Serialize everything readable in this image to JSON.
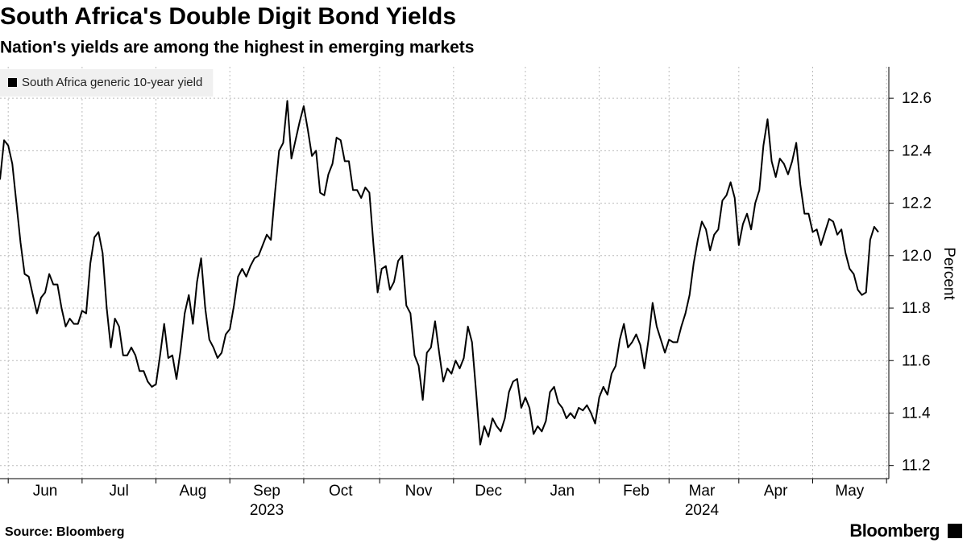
{
  "chart_data": {
    "type": "line",
    "title": "South Africa's Double Digit Bond Yields",
    "subtitle": "Nation's yields are among the highest in emerging markets",
    "y_axis_label": "Percent",
    "source": "Source: Bloomberg",
    "logo": "Bloomberg",
    "legend_position": "upper left",
    "grid": true,
    "ylim": [
      11.15,
      12.72
    ],
    "yticks": [
      11.2,
      11.4,
      11.6,
      11.8,
      {
        "value": 12,
        "label": "12.0"
      },
      12.2,
      12.4,
      12.6
    ],
    "categories": [
      null,
      null,
      null,
      null,
      null,
      null,
      null,
      null,
      null,
      null,
      null,
      "Jun",
      null,
      null,
      null,
      null,
      null,
      null,
      null,
      null,
      null,
      null,
      null,
      null,
      null,
      null,
      null,
      null,
      null,
      "Jul",
      null,
      null,
      null,
      null,
      null,
      null,
      null,
      null,
      null,
      null,
      null,
      null,
      null,
      null,
      null,
      null,
      null,
      "Aug",
      null,
      null,
      null,
      null,
      null,
      null,
      null,
      null,
      null,
      null,
      null,
      null,
      null,
      null,
      null,
      null,
      null,
      "Sep",
      null,
      null,
      null,
      null,
      null,
      null,
      null,
      null,
      null,
      null,
      null,
      null,
      null,
      null,
      null,
      null,
      null,
      "Oct",
      null,
      null,
      null,
      null,
      null,
      null,
      null,
      null,
      null,
      null,
      null,
      null,
      null,
      null,
      null,
      null,
      null,
      null,
      "Nov",
      null,
      null,
      null,
      null,
      null,
      null,
      null,
      null,
      null,
      null,
      null,
      null,
      null,
      null,
      null,
      null,
      "Dec",
      null,
      null,
      null,
      null,
      null,
      null,
      null,
      null,
      null,
      null,
      null,
      null,
      null,
      null,
      null,
      null,
      null,
      "Jan",
      null,
      null,
      null,
      null,
      null,
      null,
      null,
      null,
      null,
      null,
      null,
      null,
      null,
      null,
      null,
      null,
      null,
      "Feb",
      null,
      null,
      null,
      null,
      null,
      null,
      null,
      null,
      null,
      null,
      null,
      null,
      null,
      null,
      null,
      "Mar",
      null,
      null,
      null,
      null,
      null,
      null,
      null,
      null,
      null,
      null,
      null,
      null,
      null,
      null,
      null,
      null,
      null,
      "Apr",
      null,
      null,
      null,
      null,
      null,
      null,
      null,
      null,
      null,
      null,
      null,
      null,
      null,
      null,
      null,
      null,
      null,
      "May",
      null,
      null,
      null,
      null,
      null,
      null,
      null
    ],
    "year_labels": [
      null,
      null,
      null,
      null,
      null,
      null,
      null,
      null,
      null,
      null,
      null,
      null,
      null,
      null,
      null,
      null,
      null,
      null,
      null,
      null,
      null,
      null,
      null,
      null,
      null,
      null,
      null,
      null,
      null,
      null,
      null,
      null,
      null,
      null,
      null,
      null,
      null,
      null,
      null,
      null,
      null,
      null,
      null,
      null,
      null,
      null,
      null,
      null,
      null,
      null,
      null,
      null,
      null,
      null,
      null,
      null,
      null,
      null,
      null,
      null,
      null,
      null,
      null,
      null,
      null,
      "2023",
      null,
      null,
      null,
      null,
      null,
      null,
      null,
      null,
      null,
      null,
      null,
      null,
      null,
      null,
      null,
      null,
      null,
      null,
      null,
      null,
      null,
      null,
      null,
      null,
      null,
      null,
      null,
      null,
      null,
      null,
      null,
      null,
      null,
      null,
      null,
      null,
      null,
      null,
      null,
      null,
      null,
      null,
      null,
      null,
      null,
      null,
      null,
      null,
      null,
      null,
      null,
      null,
      null,
      null,
      null,
      null,
      null,
      null,
      null,
      null,
      null,
      null,
      null,
      null,
      null,
      null,
      null,
      null,
      null,
      null,
      null,
      null,
      null,
      null,
      null,
      null,
      null,
      null,
      null,
      null,
      null,
      null,
      null,
      null,
      null,
      null,
      null,
      null,
      null,
      null,
      null,
      null,
      null,
      null,
      null,
      null,
      null,
      null,
      null,
      null,
      null,
      null,
      null,
      null,
      null,
      "2024",
      null,
      null,
      null,
      null,
      null,
      null,
      null,
      null,
      null,
      null,
      null,
      null,
      null,
      null,
      null,
      null,
      null,
      null,
      null,
      null,
      null,
      null,
      null,
      null,
      null,
      null,
      null,
      null,
      null,
      null,
      null,
      null,
      null,
      null,
      null,
      null,
      null,
      null,
      null,
      null,
      null,
      null,
      null
    ],
    "series": [
      {
        "name": "South Africa generic 10-year yield",
        "color": "#000000",
        "values": [
          12.29,
          12.44,
          12.42,
          12.35,
          12.2,
          12.05,
          11.93,
          11.92,
          11.85,
          11.78,
          11.84,
          11.86,
          11.93,
          11.89,
          11.89,
          11.8,
          11.73,
          11.76,
          11.74,
          11.74,
          11.79,
          11.78,
          11.97,
          12.07,
          12.09,
          12.01,
          11.8,
          11.65,
          11.76,
          11.73,
          11.62,
          11.62,
          11.65,
          11.62,
          11.56,
          11.56,
          11.52,
          11.5,
          11.51,
          11.62,
          11.74,
          11.61,
          11.62,
          11.53,
          11.64,
          11.78,
          11.85,
          11.74,
          11.9,
          11.99,
          11.8,
          11.68,
          11.65,
          11.61,
          11.63,
          11.7,
          11.72,
          11.81,
          11.92,
          11.95,
          11.92,
          11.96,
          11.99,
          12.0,
          12.04,
          12.08,
          12.06,
          12.24,
          12.4,
          12.43,
          12.59,
          12.37,
          12.44,
          12.51,
          12.57,
          12.48,
          12.38,
          12.4,
          12.24,
          12.23,
          12.31,
          12.35,
          12.45,
          12.44,
          12.36,
          12.36,
          12.25,
          12.25,
          12.22,
          12.26,
          12.24,
          12.04,
          11.86,
          11.95,
          11.96,
          11.87,
          11.9,
          11.98,
          12.0,
          11.81,
          11.78,
          11.62,
          11.58,
          11.45,
          11.63,
          11.65,
          11.75,
          11.63,
          11.52,
          11.57,
          11.55,
          11.6,
          11.57,
          11.61,
          11.73,
          11.67,
          11.48,
          11.28,
          11.35,
          11.31,
          11.38,
          11.35,
          11.33,
          11.38,
          11.48,
          11.52,
          11.53,
          11.42,
          11.46,
          11.42,
          11.32,
          11.35,
          11.33,
          11.37,
          11.48,
          11.5,
          11.44,
          11.42,
          11.38,
          11.4,
          11.38,
          11.42,
          11.41,
          11.43,
          11.4,
          11.36,
          11.46,
          11.5,
          11.47,
          11.55,
          11.58,
          11.68,
          11.74,
          11.65,
          11.67,
          11.7,
          11.66,
          11.57,
          11.68,
          11.82,
          11.73,
          11.68,
          11.63,
          11.68,
          11.67,
          11.67,
          11.73,
          11.78,
          11.85,
          11.97,
          12.06,
          12.13,
          12.1,
          12.02,
          12.08,
          12.1,
          12.21,
          12.23,
          12.28,
          12.22,
          12.04,
          12.12,
          12.16,
          12.1,
          12.2,
          12.25,
          12.42,
          12.52,
          12.36,
          12.3,
          12.37,
          12.35,
          12.31,
          12.36,
          12.43,
          12.27,
          12.16,
          12.16,
          12.09,
          12.1,
          12.04,
          12.09,
          12.14,
          12.13,
          12.08,
          12.1,
          12.01,
          11.95,
          11.93,
          11.87,
          11.85,
          11.86,
          12.06,
          12.11,
          12.09
        ]
      }
    ]
  }
}
